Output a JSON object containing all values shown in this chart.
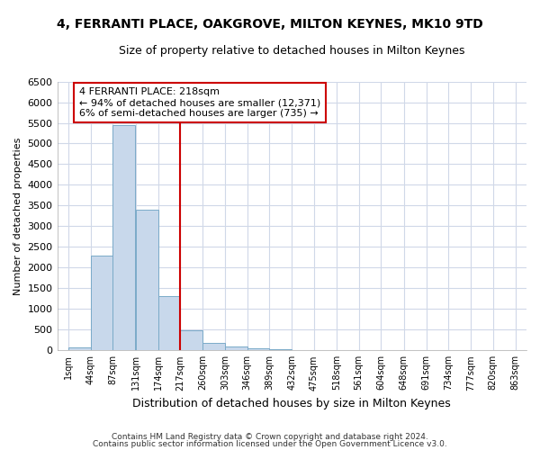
{
  "title1": "4, FERRANTI PLACE, OAKGROVE, MILTON KEYNES, MK10 9TD",
  "title2": "Size of property relative to detached houses in Milton Keynes",
  "xlabel": "Distribution of detached houses by size in Milton Keynes",
  "ylabel": "Number of detached properties",
  "bin_edges": [
    1,
    44,
    87,
    131,
    174,
    217,
    260,
    303,
    346,
    389,
    432,
    475,
    518,
    561,
    604,
    648,
    691,
    734,
    777,
    820,
    863
  ],
  "bar_heights": [
    80,
    2300,
    5450,
    3400,
    1320,
    480,
    175,
    95,
    55,
    30,
    12,
    10,
    5,
    5,
    5,
    5,
    5,
    5,
    5,
    5
  ],
  "bar_color": "#c8d8eb",
  "bar_edgecolor": "#7aaac8",
  "property_line_x": 217,
  "property_line_color": "#cc0000",
  "ylim": [
    0,
    6500
  ],
  "annotation_text": "4 FERRANTI PLACE: 218sqm\n← 94% of detached houses are smaller (12,371)\n6% of semi-detached houses are larger (735) →",
  "annotation_box_color": "#ffffff",
  "annotation_box_edgecolor": "#cc0000",
  "footer1": "Contains HM Land Registry data © Crown copyright and database right 2024.",
  "footer2": "Contains public sector information licensed under the Open Government Licence v3.0.",
  "plot_bg_color": "#ffffff",
  "fig_bg_color": "#ffffff",
  "grid_color": "#d0d8e8",
  "title1_fontsize": 10,
  "title2_fontsize": 9,
  "yticks": [
    0,
    500,
    1000,
    1500,
    2000,
    2500,
    3000,
    3500,
    4000,
    4500,
    5000,
    5500,
    6000,
    6500
  ],
  "tick_labels": [
    "1sqm",
    "44sqm",
    "87sqm",
    "131sqm",
    "174sqm",
    "217sqm",
    "260sqm",
    "303sqm",
    "346sqm",
    "389sqm",
    "432sqm",
    "475sqm",
    "518sqm",
    "561sqm",
    "604sqm",
    "648sqm",
    "691sqm",
    "734sqm",
    "777sqm",
    "820sqm",
    "863sqm"
  ]
}
